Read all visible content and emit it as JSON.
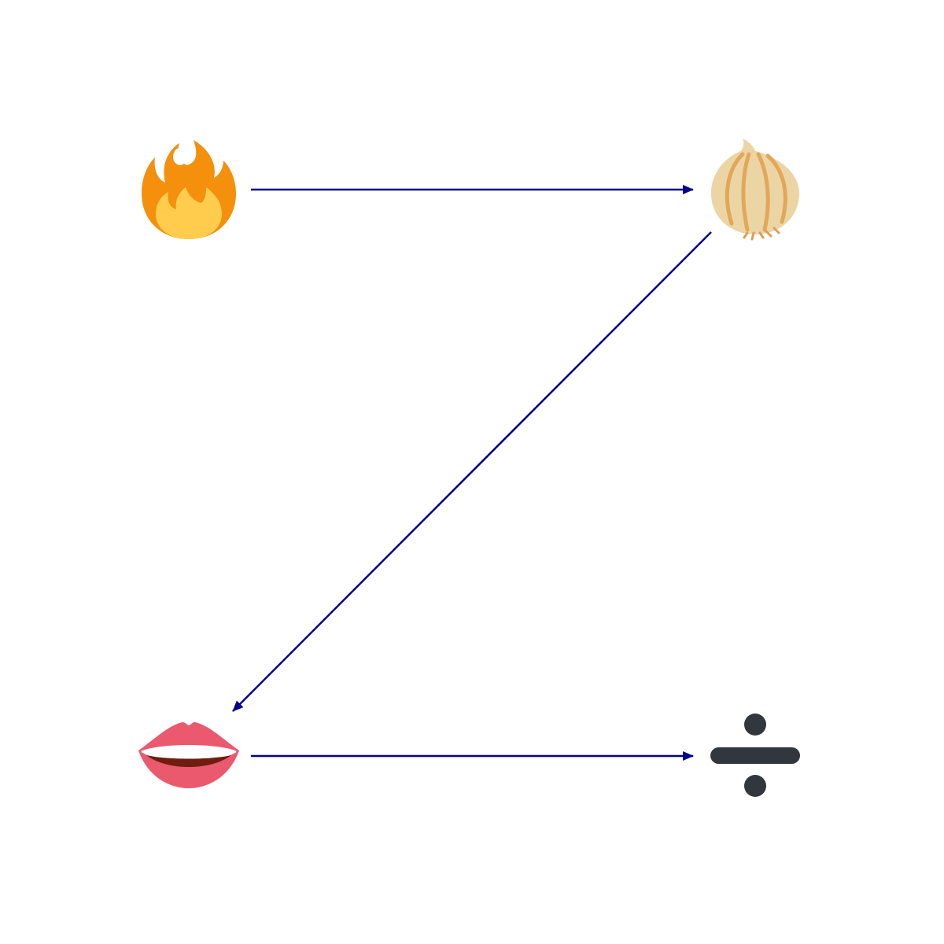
{
  "diagram": {
    "nodes": [
      {
        "id": "fire",
        "icon": "fire-icon",
        "emoji": "🔥"
      },
      {
        "id": "onion",
        "icon": "onion-icon",
        "emoji": "🧅"
      },
      {
        "id": "mouth",
        "icon": "mouth-icon",
        "emoji": "👄"
      },
      {
        "id": "divide",
        "icon": "divide-icon",
        "emoji": "➗"
      }
    ],
    "edges": [
      {
        "from": "fire",
        "to": "onion"
      },
      {
        "from": "onion",
        "to": "mouth"
      },
      {
        "from": "mouth",
        "to": "divide"
      }
    ],
    "colors": {
      "arrow": "#00008b",
      "background": "#ffffff"
    }
  }
}
